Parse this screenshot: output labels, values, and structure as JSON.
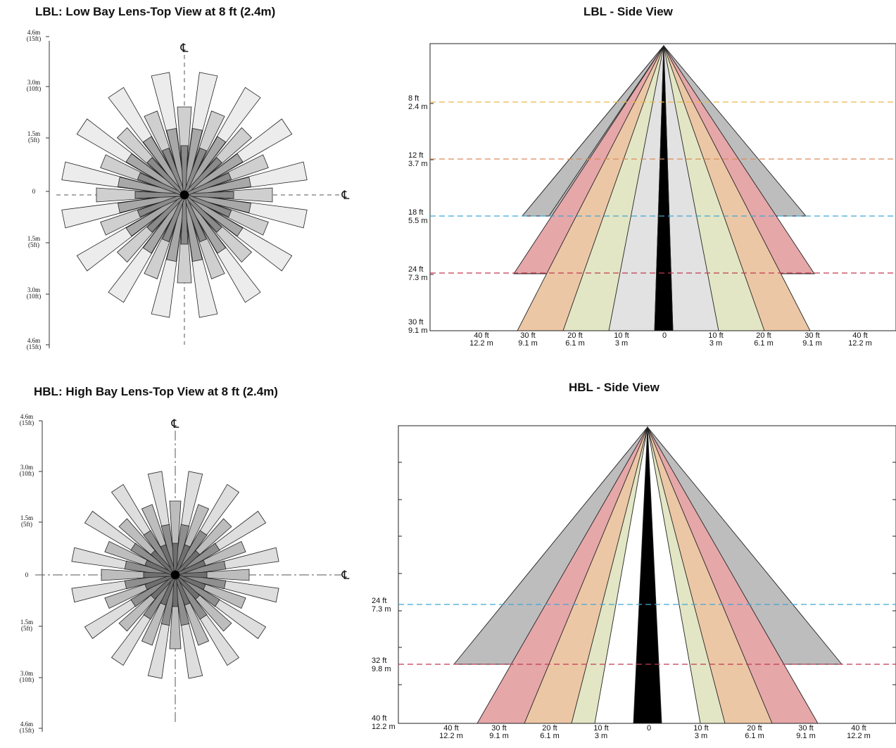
{
  "titles": {
    "lbl_top": "LBL: Low Bay Lens-Top View at 8 ft (2.4m)",
    "lbl_side": "LBL - Side View",
    "hbl_top": "HBL: High Bay Lens-Top View at 8 ft (2.4m)",
    "hbl_side": "HBL - Side View"
  },
  "top_view_axis": {
    "ticks": [
      [
        "4.6m",
        "(15ft)"
      ],
      [
        "3.0m",
        "(10ft)"
      ],
      [
        "1.5m",
        "(5ft)"
      ],
      [
        "0",
        ""
      ],
      [
        "1.5m",
        "(5ft)"
      ],
      [
        "3.0m",
        "(10ft)"
      ],
      [
        "4.6m",
        "(15ft)"
      ]
    ],
    "centerline_symbol": "℄"
  },
  "lbl_side": {
    "height_labels": [
      {
        "ft": "8 ft",
        "m": "2.4 m",
        "color": "#e8b84a"
      },
      {
        "ft": "12 ft",
        "m": "3.7 m",
        "color": "#d98b5a"
      },
      {
        "ft": "18 ft",
        "m": "5.5 m",
        "color": "#3fa7d6"
      },
      {
        "ft": "24 ft",
        "m": "7.3 m",
        "color": "#c0394f"
      },
      {
        "ft": "30 ft",
        "m": "9.1 m",
        "color": null
      }
    ],
    "x_labels": [
      [
        "40 ft",
        "12.2 m"
      ],
      [
        "30 ft",
        "9.1 m"
      ],
      [
        "20 ft",
        "6.1 m"
      ],
      [
        "10 ft",
        "3 m"
      ],
      [
        "0",
        ""
      ],
      [
        "10 ft",
        "3 m"
      ],
      [
        "20 ft",
        "6.1 m"
      ],
      [
        "30 ft",
        "9.1 m"
      ],
      [
        "40 ft",
        "12.2 m"
      ]
    ]
  },
  "hbl_side": {
    "height_labels": [
      {
        "ft": "24 ft",
        "m": "7.3 m",
        "color": "#3fa7d6"
      },
      {
        "ft": "32 ft",
        "m": "9.8 m",
        "color": "#c0394f"
      },
      {
        "ft": "40 ft",
        "m": "12.2 m",
        "color": null
      }
    ],
    "x_labels": [
      [
        "40 ft",
        "12.2 m"
      ],
      [
        "30 ft",
        "9.1 m"
      ],
      [
        "20 ft",
        "6.1 m"
      ],
      [
        "10 ft",
        "3 m"
      ],
      [
        "0",
        ""
      ],
      [
        "10 ft",
        "3 m"
      ],
      [
        "20 ft",
        "6.1 m"
      ],
      [
        "30 ft",
        "9.1 m"
      ],
      [
        "40 ft",
        "12.2 m"
      ]
    ]
  },
  "beam_colors": {
    "center": "#000000",
    "ring1": "#e2e2e2",
    "ring2": "#e3e6c4",
    "ring3": "#ecc7a6",
    "ring4": "#e6a7a9",
    "ring5": "#bdbdbd"
  }
}
